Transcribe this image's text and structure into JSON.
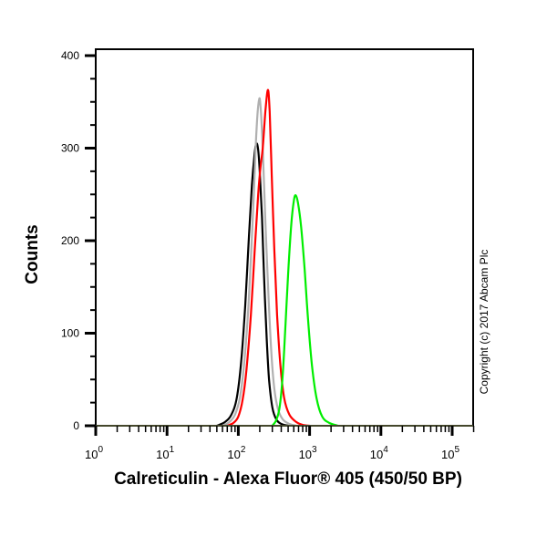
{
  "chart_data": {
    "type": "line",
    "title": "",
    "xlabel": "Calreticulin - Alexa Fluor® 405 (450/50 BP)",
    "ylabel": "Counts",
    "xscale": "log",
    "xlim": [
      1,
      200000
    ],
    "ylim": [
      0,
      400
    ],
    "x_ticks": [
      {
        "base": "10",
        "exp": "0",
        "value": 1
      },
      {
        "base": "10",
        "exp": "1",
        "value": 10
      },
      {
        "base": "10",
        "exp": "2",
        "value": 100
      },
      {
        "base": "10",
        "exp": "3",
        "value": 1000
      },
      {
        "base": "10",
        "exp": "4",
        "value": 10000
      },
      {
        "base": "10",
        "exp": "5",
        "value": 100000
      }
    ],
    "y_ticks": [
      0,
      100,
      200,
      300,
      400
    ],
    "grid": false,
    "legend": null,
    "annotation": "Copyright (c) 2017 Abcam Plc",
    "series": [
      {
        "name": "black",
        "color": "#000000",
        "points": [
          [
            50,
            0
          ],
          [
            65,
            4
          ],
          [
            80,
            12
          ],
          [
            95,
            30
          ],
          [
            110,
            70
          ],
          [
            125,
            130
          ],
          [
            140,
            200
          ],
          [
            155,
            260
          ],
          [
            170,
            295
          ],
          [
            180,
            305
          ],
          [
            190,
            298
          ],
          [
            200,
            275
          ],
          [
            215,
            225
          ],
          [
            230,
            160
          ],
          [
            250,
            95
          ],
          [
            270,
            50
          ],
          [
            300,
            20
          ],
          [
            340,
            7
          ],
          [
            400,
            2
          ],
          [
            500,
            0
          ]
        ]
      },
      {
        "name": "grey",
        "color": "#b0b0b0",
        "points": [
          [
            60,
            0
          ],
          [
            75,
            4
          ],
          [
            90,
            12
          ],
          [
            105,
            30
          ],
          [
            120,
            65
          ],
          [
            135,
            115
          ],
          [
            150,
            180
          ],
          [
            165,
            250
          ],
          [
            180,
            320
          ],
          [
            195,
            352
          ],
          [
            205,
            345
          ],
          [
            220,
            300
          ],
          [
            240,
            220
          ],
          [
            265,
            140
          ],
          [
            290,
            80
          ],
          [
            320,
            40
          ],
          [
            360,
            18
          ],
          [
            420,
            7
          ],
          [
            520,
            2
          ],
          [
            650,
            0
          ]
        ]
      },
      {
        "name": "red",
        "color": "#ff0000",
        "points": [
          [
            70,
            0
          ],
          [
            85,
            3
          ],
          [
            100,
            10
          ],
          [
            115,
            28
          ],
          [
            130,
            60
          ],
          [
            150,
            120
          ],
          [
            170,
            190
          ],
          [
            190,
            250
          ],
          [
            205,
            280
          ],
          [
            220,
            300
          ],
          [
            240,
            340
          ],
          [
            260,
            363
          ],
          [
            275,
            340
          ],
          [
            295,
            270
          ],
          [
            320,
            190
          ],
          [
            350,
            120
          ],
          [
            390,
            65
          ],
          [
            440,
            30
          ],
          [
            520,
            12
          ],
          [
            650,
            4
          ],
          [
            800,
            1
          ],
          [
            1000,
            0
          ]
        ]
      },
      {
        "name": "green",
        "color": "#00ee00",
        "points": [
          [
            300,
            0
          ],
          [
            340,
            6
          ],
          [
            380,
            20
          ],
          [
            420,
            55
          ],
          [
            460,
            110
          ],
          [
            500,
            165
          ],
          [
            550,
            215
          ],
          [
            600,
            243
          ],
          [
            640,
            249
          ],
          [
            690,
            240
          ],
          [
            760,
            215
          ],
          [
            850,
            170
          ],
          [
            950,
            115
          ],
          [
            1080,
            65
          ],
          [
            1250,
            30
          ],
          [
            1500,
            10
          ],
          [
            1900,
            3
          ],
          [
            2500,
            0
          ]
        ]
      }
    ]
  }
}
